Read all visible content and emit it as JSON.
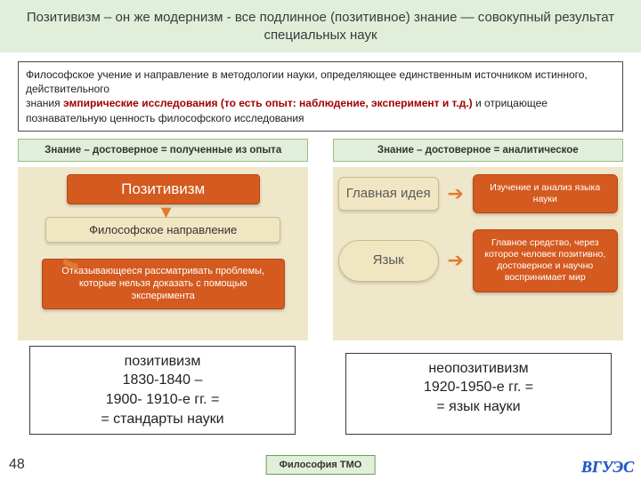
{
  "colors": {
    "banner_bg": "#e1efda",
    "accent_orange": "#d45a1f",
    "accent_orange_border": "#b34816",
    "cream_bg": "#efe7c9",
    "box_cream": "#f1e6c2",
    "box_cream_border": "#c8bc90",
    "text_dark": "#3a3a3a",
    "emphasis_red": "#a00000",
    "logo_blue": "#1f57c4"
  },
  "title": "Позитивизм – он же модернизм - все подлинное (позитивное) знание — совокупный результат специальных наук",
  "definition": {
    "part1": "Философское учение и направление в методологии науки, определяющее единственным источником истинного, действительного",
    "part2_word": "знания ",
    "emphasis": "эмпирические исследования (то есть опыт: наблюдение, эксперимент и т.д.)",
    "part3": " и отрицающее познавательную ценность философского исследования"
  },
  "left_col": {
    "header": "Знание – достоверное = полученные из опыта",
    "box_top": "Позитивизм",
    "box_mid": "Философское направление",
    "box_bot": "Отказывающееся рассматривать проблемы, которые нельзя доказать с помощью эксперимента"
  },
  "right_col": {
    "header": "Знание – достоверное = аналитическое",
    "row1_left": "Главная идея",
    "row1_right": "Изучение и анализ языка науки",
    "row2_left": "Язык",
    "row2_right": "Главное средство, через которое человек позитивно, достоверное и научно воспринимает мир"
  },
  "bottom": {
    "left": "позитивизм\n1830-1840 –\n1900- 1910-е гг. =\n= стандарты науки",
    "right": "неопозитивизм\n1920-1950-е гг. =\n= язык науки"
  },
  "page_number": "48",
  "footer_label": "Философия ТМО",
  "logo_text": "ВГУЭС"
}
